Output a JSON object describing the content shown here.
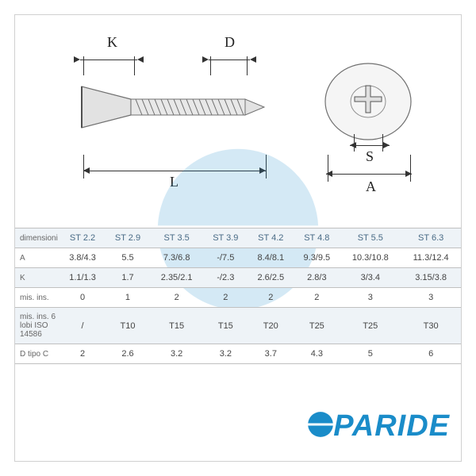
{
  "diagram": {
    "labels": {
      "K": "K",
      "D": "D",
      "L": "L",
      "S": "S",
      "A": "A"
    },
    "colors": {
      "line": "#333333",
      "screw_fill": "#e2e2e2",
      "screw_stroke": "#707070",
      "background": "#ffffff",
      "table_alt": "#eef3f7",
      "table_border": "#c0c0c0",
      "header_text": "#486a85"
    }
  },
  "table": {
    "columns": [
      "ST 2.2",
      "ST 2.9",
      "ST 3.5",
      "ST 3.9",
      "ST 4.2",
      "ST 4.8",
      "ST 5.5",
      "ST 6.3"
    ],
    "rows": [
      {
        "label": "dimensioni",
        "alt": true,
        "is_header": true
      },
      {
        "label": "A",
        "values": [
          "3.8/4.3",
          "5.5",
          "7.3/6.8",
          "-/7.5",
          "8.4/8.1",
          "9.3/9.5",
          "10.3/10.8",
          "11.3/12.4"
        ]
      },
      {
        "label": "K",
        "values": [
          "1.1/1.3",
          "1.7",
          "2.35/2.1",
          "-/2.3",
          "2.6/2.5",
          "2.8/3",
          "3/3.4",
          "3.15/3.8"
        ],
        "alt": true
      },
      {
        "label": "mis. ins.",
        "values": [
          "0",
          "1",
          "2",
          "2",
          "2",
          "2",
          "3",
          "3"
        ]
      },
      {
        "label": "mis. ins. 6 lobi ISO 14586",
        "values": [
          "/",
          "T10",
          "T15",
          "T15",
          "T20",
          "T25",
          "T25",
          "T30"
        ],
        "alt": true
      },
      {
        "label": "D tipo C",
        "values": [
          "2",
          "2.6",
          "3.2",
          "3.2",
          "3.7",
          "4.3",
          "5",
          "6"
        ]
      }
    ]
  },
  "brand": {
    "text": "PARIDE",
    "color": "#1a8cc9"
  },
  "watermark": {
    "color": "#1a8cc9",
    "opacity": 0.18
  }
}
